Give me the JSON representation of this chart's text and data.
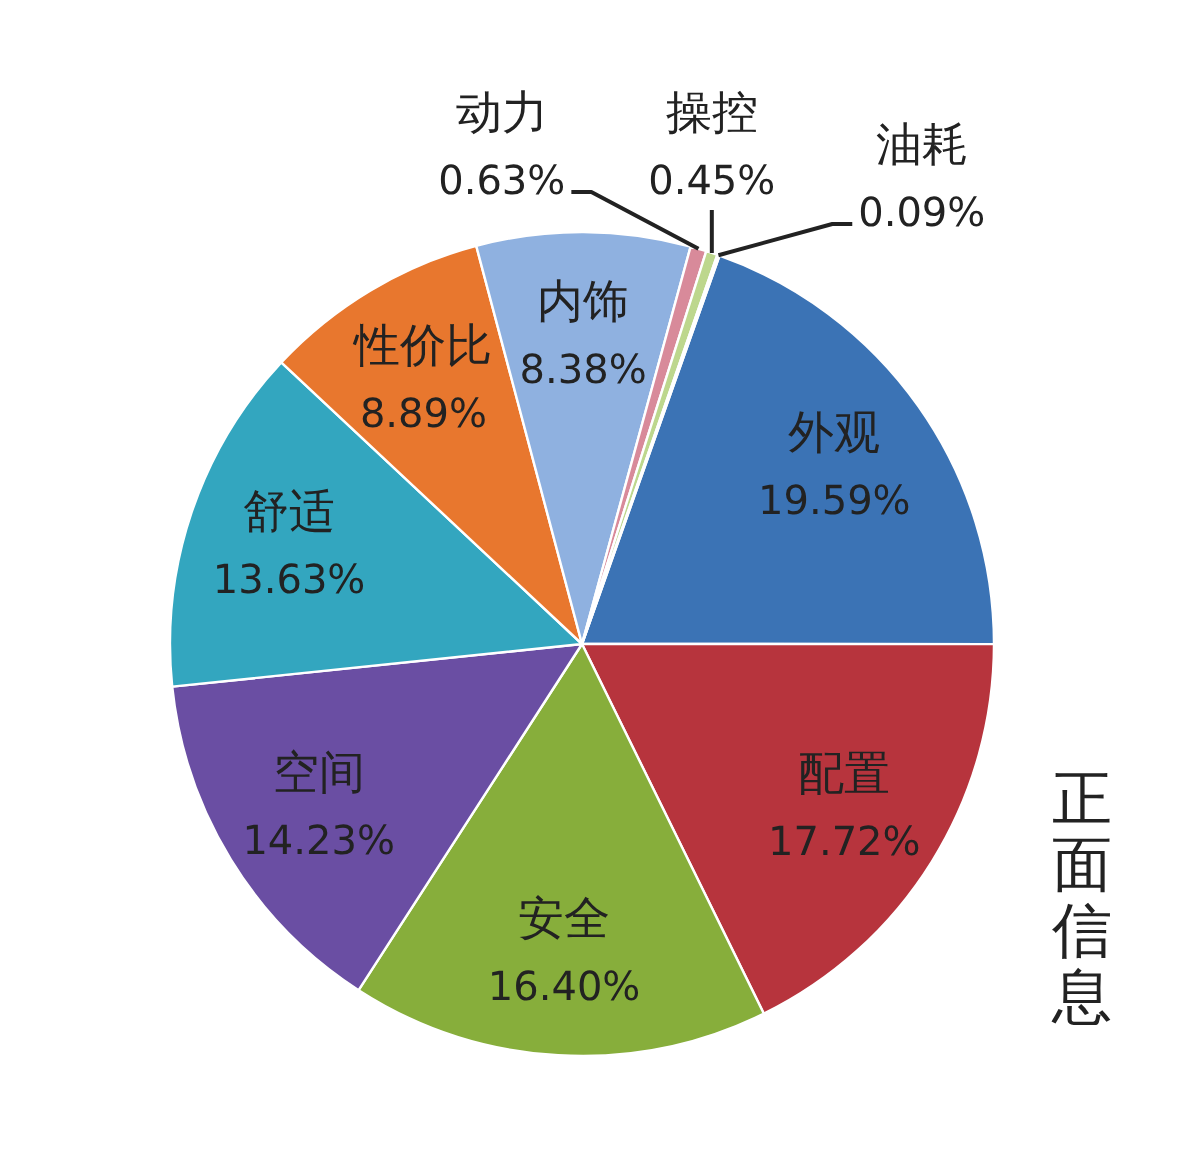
{
  "chart_data": {
    "type": "pie",
    "title": "正面信息",
    "categories": [
      "外观",
      "配置",
      "安全",
      "空间",
      "舒适",
      "性价比",
      "内饰",
      "动力",
      "操控",
      "油耗"
    ],
    "values": [
      19.59,
      17.72,
      16.4,
      14.23,
      13.63,
      8.89,
      8.38,
      0.63,
      0.45,
      0.09
    ],
    "value_labels": [
      "19.59%",
      "17.72%",
      "16.40%",
      "14.23%",
      "13.63%",
      "8.89%",
      "8.38%",
      "0.63%",
      "0.45%",
      "0.09%"
    ],
    "colors": [
      "#3b73b5",
      "#b7343d",
      "#87ae3b",
      "#6a4ea3",
      "#33a6bf",
      "#e8772e",
      "#8fb1e0",
      "#d88a9a",
      "#bdd78d",
      "#a99bd0"
    ]
  }
}
